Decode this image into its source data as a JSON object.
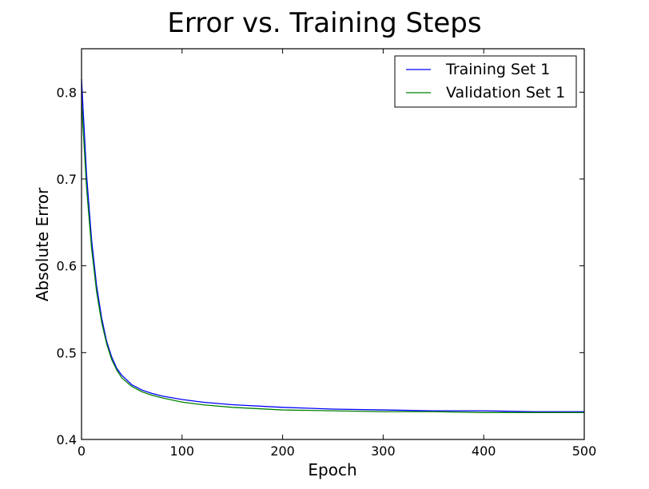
{
  "chart_data": {
    "type": "line",
    "title": "Error vs. Training Steps",
    "xlabel": "Epoch",
    "ylabel": "Absolute Error",
    "xlim": [
      0,
      500
    ],
    "ylim": [
      0.4,
      0.85
    ],
    "xticks": [
      0,
      100,
      200,
      300,
      400,
      500
    ],
    "xtick_labels": [
      "0",
      "100",
      "200",
      "300",
      "400",
      "500"
    ],
    "yticks": [
      0.4,
      0.5,
      0.6,
      0.7,
      0.8
    ],
    "ytick_labels": [
      "0.4",
      "0.5",
      "0.6",
      "0.7",
      "0.8"
    ],
    "grid": false,
    "legend_position": "top-right",
    "series": [
      {
        "name": "Training Set 1",
        "color": "#0000ff",
        "x": [
          0,
          5,
          10,
          15,
          20,
          25,
          30,
          35,
          40,
          50,
          60,
          70,
          80,
          100,
          120,
          150,
          200,
          250,
          300,
          350,
          400,
          450,
          500
        ],
        "y": [
          0.815,
          0.705,
          0.63,
          0.577,
          0.54,
          0.513,
          0.495,
          0.482,
          0.474,
          0.463,
          0.457,
          0.453,
          0.45,
          0.446,
          0.443,
          0.44,
          0.437,
          0.435,
          0.434,
          0.433,
          0.433,
          0.432,
          0.432
        ]
      },
      {
        "name": "Validation Set 1",
        "color": "#008000",
        "x": [
          0,
          5,
          10,
          15,
          20,
          25,
          30,
          35,
          40,
          50,
          60,
          70,
          80,
          100,
          120,
          150,
          200,
          250,
          300,
          350,
          400,
          450,
          500
        ],
        "y": [
          0.79,
          0.69,
          0.62,
          0.57,
          0.535,
          0.51,
          0.492,
          0.48,
          0.471,
          0.461,
          0.455,
          0.451,
          0.448,
          0.443,
          0.44,
          0.437,
          0.434,
          0.433,
          0.432,
          0.432,
          0.431,
          0.431,
          0.431
        ]
      }
    ]
  }
}
